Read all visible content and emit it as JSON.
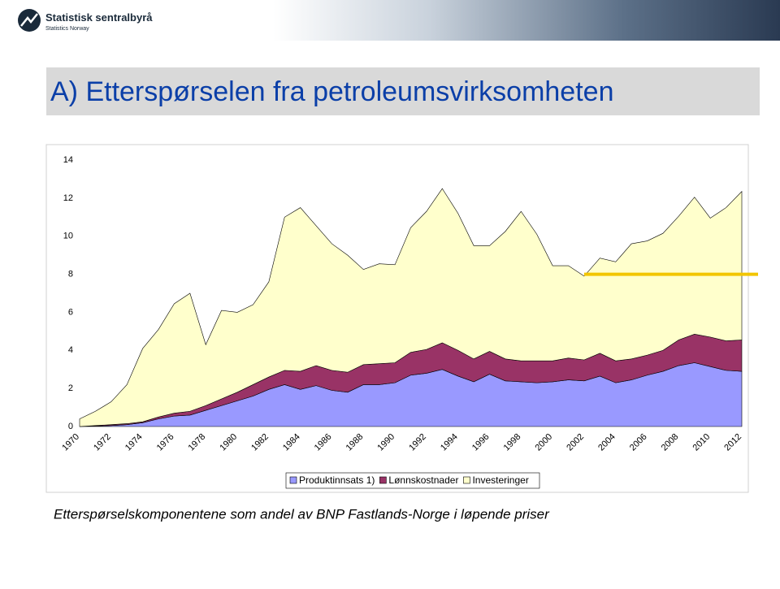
{
  "header": {
    "logo_name": "Statistisk sentralbyrå",
    "logo_subtitle": "Statistics Norway"
  },
  "title": "A) Etterspørselen fra petroleumsvirksomheten",
  "caption": "Etterspørselskomponentene som andel av BNP Fastlands-Norge i løpende priser",
  "chart_data": {
    "type": "stacked_area",
    "categories": [
      "1970",
      null,
      "1972",
      null,
      "1974",
      null,
      "1976",
      null,
      "1978",
      null,
      "1980",
      null,
      "1982",
      null,
      "1984",
      null,
      "1986",
      null,
      "1988",
      null,
      "1990",
      null,
      "1992",
      null,
      "1994",
      null,
      "1996",
      null,
      "1998",
      null,
      "2000",
      null,
      "2002",
      null,
      "2004",
      null,
      "2006",
      null,
      "2008",
      null,
      "2010",
      null,
      "2012"
    ],
    "series": [
      {
        "name": "Produktinnsats 1)",
        "color": "#9999ff",
        "values": [
          0,
          0.02,
          0.05,
          0.1,
          0.2,
          0.4,
          0.55,
          0.6,
          0.85,
          1.1,
          1.35,
          1.6,
          1.95,
          2.2,
          1.95,
          2.15,
          1.9,
          1.8,
          2.2,
          2.2,
          2.3,
          2.7,
          2.8,
          3.0,
          2.65,
          2.35,
          2.75,
          2.4,
          2.35,
          2.3,
          2.35,
          2.45,
          2.4,
          2.65,
          2.3,
          2.45,
          2.7,
          2.9,
          3.2,
          3.35,
          3.15,
          2.95,
          2.9
        ]
      },
      {
        "name": "Lønnskostnader",
        "color": "#993366",
        "values": [
          0,
          0.03,
          0.05,
          0.05,
          0.05,
          0.1,
          0.15,
          0.2,
          0.25,
          0.35,
          0.45,
          0.6,
          0.65,
          0.75,
          0.95,
          1.05,
          1.05,
          1.05,
          1.05,
          1.1,
          1.05,
          1.2,
          1.25,
          1.4,
          1.35,
          1.2,
          1.2,
          1.15,
          1.1,
          1.15,
          1.1,
          1.15,
          1.1,
          1.2,
          1.15,
          1.1,
          1.05,
          1.1,
          1.35,
          1.5,
          1.55,
          1.55,
          1.65
        ]
      },
      {
        "name": "Investeringer",
        "color": "#ffffcc",
        "values": [
          0.4,
          0.75,
          1.2,
          2.05,
          3.85,
          4.6,
          5.75,
          6.2,
          3.2,
          4.65,
          4.2,
          4.2,
          5.0,
          8.05,
          8.6,
          7.35,
          6.65,
          6.15,
          5.0,
          5.25,
          5.15,
          6.55,
          7.25,
          8.1,
          7.2,
          5.95,
          5.55,
          6.7,
          7.85,
          6.65,
          5.0,
          4.85,
          4.4,
          5.0,
          5.2,
          6.05,
          6.0,
          6.15,
          6.5,
          7.2,
          6.25,
          7.0,
          7.8
        ]
      }
    ],
    "ylim": [
      0,
      14
    ],
    "yticks": [
      0,
      2,
      4,
      6,
      8,
      10,
      12,
      14
    ],
    "reference_line": {
      "value": 8,
      "from": "2002",
      "color": "#f2c500"
    },
    "legend": "bottom"
  }
}
